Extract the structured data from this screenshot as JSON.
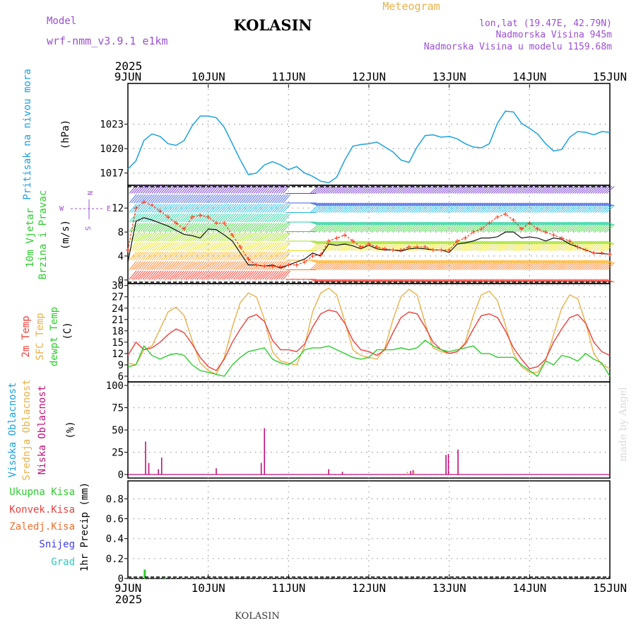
{
  "header": {
    "model_label": "Model",
    "model_name": "wrf-nmm_v3.9.1 e1km",
    "station": "KOLASIN",
    "product": "Meteogram",
    "lonlat": "lon,lat (19.47E, 42.79N)",
    "elevation": "Nadmorska Visina 945m",
    "model_elevation": "Nadmorska Visina u modelu 1159.68m"
  },
  "footer": {
    "station": "KOLASIN",
    "credit": "made by Angel"
  },
  "colors": {
    "pressure": "#1ea1dc",
    "temp2m": "#e8413c",
    "sfc_temp": "#e8b14a",
    "dewpoint": "#2ecc2e",
    "wind_speed": "#000000",
    "gust": "#ff3a1a",
    "cloud_high": "#1ea1dc",
    "cloud_mid": "#e8b14a",
    "cloud_low": "#c0107a",
    "precip_total": "#2ecc2e",
    "precip_conv": "#e8413c",
    "precip_frozen": "#f07030",
    "snow": "#4040e0",
    "graupel": "#30c8c0",
    "axis_labels": "#9c4fd0"
  },
  "chart_data": [
    {
      "type": "line",
      "panel": "pressure",
      "ylabel": "Pritisak na nivou mora",
      "unit": "(hPa)",
      "year_label": "2025",
      "x_ticks": [
        "9JUN",
        "10JUN",
        "11JUN",
        "12JUN",
        "13JUN",
        "14JUN",
        "15JUN"
      ],
      "xlim_days": [
        0,
        6
      ],
      "ylim": [
        1015.5,
        1028
      ],
      "y_ticks": [
        1017,
        1020,
        1023
      ],
      "grid": true,
      "series": [
        {
          "x": [
            0,
            0.1,
            0.2,
            0.3,
            0.4,
            0.5,
            0.6,
            0.7,
            0.8,
            0.9,
            1.0,
            1.1,
            1.2,
            1.3,
            1.4,
            1.5,
            1.6,
            1.7,
            1.8,
            1.9,
            2.0,
            2.1,
            2.2,
            2.3,
            2.4,
            2.5,
            2.6,
            2.7,
            2.8,
            2.9,
            3.0,
            3.1,
            3.2,
            3.3,
            3.4,
            3.5,
            3.6,
            3.7,
            3.8,
            3.9,
            4.0,
            4.1,
            4.2,
            4.3,
            4.4,
            4.5,
            4.6,
            4.7,
            4.8,
            4.9,
            5.0,
            5.1,
            5.2,
            5.3,
            5.4,
            5.5,
            5.6,
            5.7,
            5.8,
            5.9,
            6.0
          ],
          "values": [
            1017.5,
            1018.5,
            1021.0,
            1021.8,
            1021.5,
            1020.6,
            1020.4,
            1021.0,
            1022.8,
            1024.0,
            1024.0,
            1023.8,
            1022.6,
            1020.6,
            1018.6,
            1016.8,
            1017.0,
            1018.0,
            1018.4,
            1018.0,
            1017.4,
            1017.8,
            1017.0,
            1016.6,
            1016.0,
            1015.8,
            1016.5,
            1018.6,
            1020.3,
            1020.5,
            1020.6,
            1020.8,
            1020.2,
            1019.6,
            1018.6,
            1018.3,
            1020.2,
            1021.6,
            1021.7,
            1021.4,
            1021.5,
            1021.2,
            1020.6,
            1020.2,
            1020.1,
            1020.6,
            1023.1,
            1024.6,
            1024.5,
            1023.1,
            1022.5,
            1021.8,
            1020.6,
            1019.7,
            1019.9,
            1021.4,
            1022.1,
            1022.0,
            1021.7,
            1022.1,
            1022.0
          ]
        }
      ]
    },
    {
      "type": "line",
      "panel": "wind",
      "ylabel": "10m Vjetar Brzina i Pravac",
      "unit": "(m/s)",
      "ylim": [
        -0.6,
        15.8
      ],
      "y_ticks": [
        0,
        4,
        8,
        12
      ],
      "grid": true,
      "compass_labels": [
        "N",
        "S",
        "W",
        "E"
      ],
      "series": [
        {
          "name": "wind speed",
          "x": [
            0,
            0.1,
            0.2,
            0.3,
            0.4,
            0.5,
            0.6,
            0.7,
            0.8,
            0.9,
            1.0,
            1.1,
            1.2,
            1.3,
            1.4,
            1.5,
            1.6,
            1.7,
            1.8,
            1.9,
            2.0,
            2.1,
            2.2,
            2.3,
            2.4,
            2.5,
            2.6,
            2.7,
            2.8,
            2.9,
            3.0,
            3.1,
            3.2,
            3.3,
            3.4,
            3.5,
            3.6,
            3.7,
            3.8,
            3.9,
            4.0,
            4.1,
            4.2,
            4.3,
            4.4,
            4.5,
            4.6,
            4.7,
            4.8,
            4.9,
            5.0,
            5.1,
            5.2,
            5.3,
            5.4,
            5.5,
            5.6,
            5.7,
            5.8,
            5.9,
            6.0
          ],
          "values": [
            3.0,
            9.8,
            10.4,
            10.0,
            9.5,
            9.0,
            8.3,
            7.6,
            7.4,
            7.0,
            8.5,
            8.4,
            7.5,
            6.5,
            4.5,
            2.5,
            2.5,
            2.3,
            2.5,
            2.0,
            2.5,
            3.0,
            3.5,
            4.5,
            4.0,
            6.0,
            5.8,
            6.0,
            5.7,
            5.2,
            5.8,
            5.2,
            5.0,
            5.0,
            4.8,
            5.2,
            5.3,
            5.2,
            5.0,
            5.0,
            4.6,
            6.0,
            6.2,
            6.5,
            7.0,
            7.0,
            7.2,
            8.0,
            8.0,
            7.0,
            7.2,
            7.0,
            6.5,
            7.0,
            6.8,
            6.0,
            5.5,
            5.0,
            4.5,
            4.4,
            4.3
          ]
        },
        {
          "name": "gust",
          "x": [
            0,
            0.1,
            0.2,
            0.3,
            0.4,
            0.5,
            0.6,
            0.7,
            0.8,
            0.9,
            1.0,
            1.1,
            1.2,
            1.3,
            1.4,
            1.5,
            1.6,
            1.7,
            1.8,
            1.9,
            2.0,
            2.1,
            2.2,
            2.3,
            2.4,
            2.5,
            2.6,
            2.7,
            2.8,
            2.9,
            3.0,
            3.1,
            3.2,
            3.3,
            3.4,
            3.5,
            3.6,
            3.7,
            3.8,
            3.9,
            4.0,
            4.1,
            4.2,
            4.3,
            4.4,
            4.5,
            4.6,
            4.7,
            4.8,
            4.9,
            5.0,
            5.1,
            5.2,
            5.3,
            5.4,
            5.5,
            5.6,
            5.7,
            5.8,
            5.9,
            6.0
          ],
          "values": [
            5.0,
            12.0,
            13.0,
            12.5,
            11.5,
            10.5,
            9.5,
            8.5,
            10.5,
            10.8,
            10.5,
            9.5,
            9.5,
            7.5,
            5.5,
            3.5,
            2.5,
            2.3,
            2.3,
            2.2,
            2.5,
            2.5,
            3.0,
            4.0,
            4.2,
            6.5,
            7.0,
            7.5,
            6.5,
            5.5,
            6.0,
            5.5,
            5.2,
            5.0,
            5.0,
            5.5,
            5.5,
            5.5,
            5.0,
            5.0,
            5.0,
            6.5,
            7.0,
            8.0,
            8.5,
            9.5,
            10.5,
            11.0,
            10.0,
            8.5,
            9.5,
            8.5,
            8.0,
            7.5,
            7.0,
            6.5,
            5.5,
            5.0,
            4.5,
            4.5,
            4.3
          ]
        }
      ]
    },
    {
      "type": "line",
      "panel": "temperature",
      "ylabels": [
        "2m Temp",
        "SFC Temp",
        "dewpt Temp"
      ],
      "unit": "(C)",
      "ylim": [
        4.5,
        30.5
      ],
      "y_ticks": [
        6,
        9,
        12,
        15,
        18,
        21,
        24,
        27,
        30
      ],
      "grid": true,
      "series": [
        {
          "name": "2m Temp",
          "x": [
            0,
            0.1,
            0.2,
            0.3,
            0.4,
            0.5,
            0.6,
            0.7,
            0.8,
            0.9,
            1.0,
            1.1,
            1.2,
            1.3,
            1.4,
            1.5,
            1.6,
            1.7,
            1.8,
            1.9,
            2.0,
            2.1,
            2.2,
            2.3,
            2.4,
            2.5,
            2.6,
            2.7,
            2.8,
            2.9,
            3.0,
            3.1,
            3.2,
            3.3,
            3.4,
            3.5,
            3.6,
            3.7,
            3.8,
            3.9,
            4.0,
            4.1,
            4.2,
            4.3,
            4.4,
            4.5,
            4.6,
            4.7,
            4.8,
            4.9,
            5.0,
            5.1,
            5.2,
            5.3,
            5.4,
            5.5,
            5.6,
            5.7,
            5.8,
            5.9,
            6.0
          ],
          "values": [
            11.5,
            15.0,
            13.0,
            13.5,
            15.0,
            17.0,
            18.5,
            17.5,
            14.5,
            11.0,
            8.5,
            7.5,
            10.5,
            15.0,
            18.5,
            21.5,
            22.3,
            20.5,
            15.5,
            13.0,
            13.0,
            12.5,
            14.5,
            19.0,
            22.5,
            23.5,
            23.0,
            20.0,
            15.5,
            13.0,
            12.5,
            11.5,
            13.0,
            17.5,
            21.5,
            23.0,
            22.5,
            19.0,
            15.0,
            13.0,
            12.0,
            12.5,
            14.5,
            18.5,
            22.0,
            22.5,
            21.5,
            18.0,
            13.5,
            10.5,
            8.0,
            8.5,
            10.5,
            15.0,
            18.5,
            21.5,
            22.3,
            20.0,
            15.0,
            12.5,
            11.5
          ]
        },
        {
          "name": "SFC Temp",
          "x": [
            0,
            0.1,
            0.2,
            0.3,
            0.4,
            0.5,
            0.6,
            0.7,
            0.8,
            0.9,
            1.0,
            1.1,
            1.2,
            1.3,
            1.4,
            1.5,
            1.6,
            1.7,
            1.8,
            1.9,
            2.0,
            2.1,
            2.2,
            2.3,
            2.4,
            2.5,
            2.6,
            2.7,
            2.8,
            2.9,
            3.0,
            3.1,
            3.2,
            3.3,
            3.4,
            3.5,
            3.6,
            3.7,
            3.8,
            3.9,
            4.0,
            4.1,
            4.2,
            4.3,
            4.4,
            4.5,
            4.6,
            4.7,
            4.8,
            4.9,
            5.0,
            5.1,
            5.2,
            5.3,
            5.4,
            5.5,
            5.6,
            5.7,
            5.8,
            5.9,
            6.0
          ],
          "values": [
            9.5,
            9.0,
            13.0,
            14.0,
            18.5,
            23.0,
            24.3,
            22.0,
            15.5,
            9.5,
            7.5,
            6.5,
            11.0,
            19.0,
            25.5,
            28.0,
            27.0,
            21.0,
            12.5,
            10.0,
            9.5,
            9.0,
            14.0,
            23.0,
            28.0,
            29.3,
            27.5,
            20.5,
            13.0,
            11.5,
            11.0,
            10.5,
            13.5,
            21.0,
            27.0,
            29.0,
            27.5,
            20.0,
            13.5,
            12.5,
            12.0,
            12.5,
            15.0,
            22.0,
            27.5,
            28.5,
            26.0,
            19.5,
            12.0,
            8.5,
            7.0,
            7.0,
            10.0,
            17.0,
            24.0,
            27.5,
            26.5,
            20.0,
            12.0,
            9.0,
            8.0
          ]
        },
        {
          "name": "dewpt Temp",
          "x": [
            0,
            0.1,
            0.2,
            0.3,
            0.4,
            0.5,
            0.6,
            0.7,
            0.8,
            0.9,
            1.0,
            1.1,
            1.2,
            1.3,
            1.4,
            1.5,
            1.6,
            1.7,
            1.8,
            1.9,
            2.0,
            2.1,
            2.2,
            2.3,
            2.4,
            2.5,
            2.6,
            2.7,
            2.8,
            2.9,
            3.0,
            3.1,
            3.2,
            3.3,
            3.4,
            3.5,
            3.6,
            3.7,
            3.8,
            3.9,
            4.0,
            4.1,
            4.2,
            4.3,
            4.4,
            4.5,
            4.6,
            4.7,
            4.8,
            4.9,
            5.0,
            5.1,
            5.2,
            5.3,
            5.4,
            5.5,
            5.6,
            5.7,
            5.8,
            5.9,
            6.0
          ],
          "values": [
            8.5,
            9.0,
            14.0,
            11.5,
            10.5,
            11.5,
            12.0,
            11.5,
            9.0,
            7.5,
            7.0,
            6.5,
            6.0,
            9.0,
            11.0,
            12.5,
            13.0,
            13.5,
            10.5,
            9.5,
            9.0,
            10.5,
            13.0,
            13.5,
            13.5,
            14.0,
            13.0,
            12.0,
            11.0,
            10.5,
            11.0,
            13.0,
            13.0,
            13.0,
            13.5,
            13.0,
            13.5,
            15.5,
            14.0,
            13.0,
            12.5,
            13.0,
            13.5,
            14.0,
            12.0,
            12.0,
            11.0,
            11.0,
            11.0,
            9.0,
            7.5,
            6.0,
            10.0,
            9.0,
            11.5,
            11.0,
            10.0,
            12.0,
            10.5,
            9.5,
            6.0
          ]
        }
      ]
    },
    {
      "type": "bar",
      "panel": "clouds",
      "ylabels": [
        "Visoka Oblacnost",
        "Srednja Oblacnost",
        "Niska Oblacnost"
      ],
      "unit": "(%)",
      "ylim": [
        -4,
        104
      ],
      "y_ticks": [
        0,
        25,
        50,
        75,
        100
      ],
      "grid": true,
      "series": [
        {
          "name": "Niska Oblacnost",
          "x": [
            0.22,
            0.26,
            0.38,
            0.42,
            1.1,
            1.66,
            1.7,
            2.5,
            2.67,
            3.52,
            3.55,
            3.96,
            3.99,
            4.11
          ],
          "values": [
            37,
            13,
            6,
            19,
            7,
            13,
            52,
            6,
            3,
            4,
            5,
            22,
            23,
            28
          ]
        },
        {
          "name": "Srednja Oblacnost",
          "x": [
            3.48,
            3.56
          ],
          "values": [
            3,
            4
          ]
        }
      ]
    },
    {
      "type": "bar",
      "panel": "precipitation",
      "legend": [
        "Ukupna Kisa",
        "Konvek.Kisa",
        "Zaledj.Kisa",
        "Snijeg",
        "Grad"
      ],
      "ylabel": "1hr Precip",
      "unit": "(mm)",
      "year_label": "2025",
      "x_ticks": [
        "9JUN",
        "10JUN",
        "11JUN",
        "12JUN",
        "13JUN",
        "14JUN",
        "15JUN"
      ],
      "ylim": [
        0,
        0.98
      ],
      "y_ticks": [
        0,
        0.2,
        0.4,
        0.6,
        0.8
      ],
      "grid": true,
      "series": [
        {
          "name": "Ukupna Kisa",
          "x": [
            0.21,
            0.45
          ],
          "values": [
            0.09,
            0.01
          ]
        }
      ]
    }
  ]
}
